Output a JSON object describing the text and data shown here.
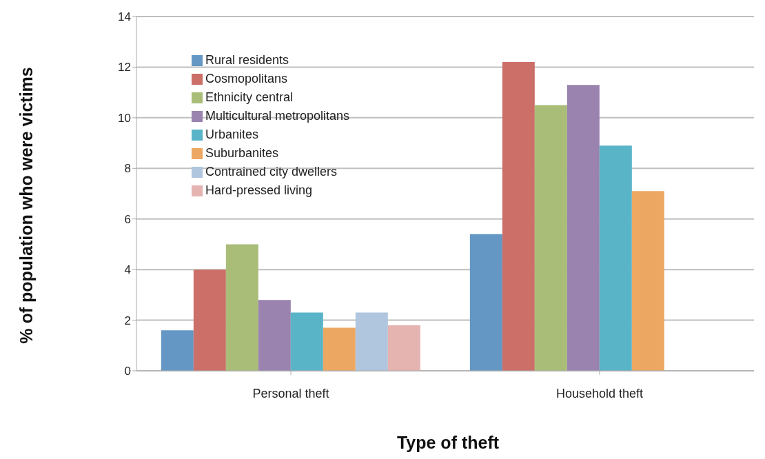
{
  "chart_data": {
    "type": "bar",
    "xlabel": "Type of theft",
    "ylabel": "% of population who were victims",
    "categories": [
      "Personal theft",
      "Household theft"
    ],
    "series": [
      {
        "name": "Rural residents",
        "color": "#6497c4",
        "values": [
          1.6,
          5.4
        ]
      },
      {
        "name": "Cosmopolitans",
        "color": "#cb6f68",
        "values": [
          4.0,
          12.2
        ]
      },
      {
        "name": "Ethnicity central",
        "color": "#a9bd78",
        "values": [
          5.0,
          10.5
        ]
      },
      {
        "name": "Multicultural metropolitans",
        "color": "#9a83af",
        "values": [
          2.8,
          11.3
        ]
      },
      {
        "name": "Urbanites",
        "color": "#5ab4c8",
        "values": [
          2.3,
          8.9
        ]
      },
      {
        "name": "Suburbanites",
        "color": "#eca862",
        "values": [
          1.7,
          7.1
        ]
      },
      {
        "name": "Contrained city dwellers",
        "color": "#b0c5de",
        "values": [
          2.3,
          null
        ]
      },
      {
        "name": "Hard-pressed living",
        "color": "#e5b3b0",
        "values": [
          1.8,
          null
        ]
      }
    ],
    "ylim": [
      0,
      14
    ],
    "yticks": [
      0,
      2,
      4,
      6,
      8,
      10,
      12,
      14
    ],
    "grid": "y",
    "legend": "top left"
  }
}
